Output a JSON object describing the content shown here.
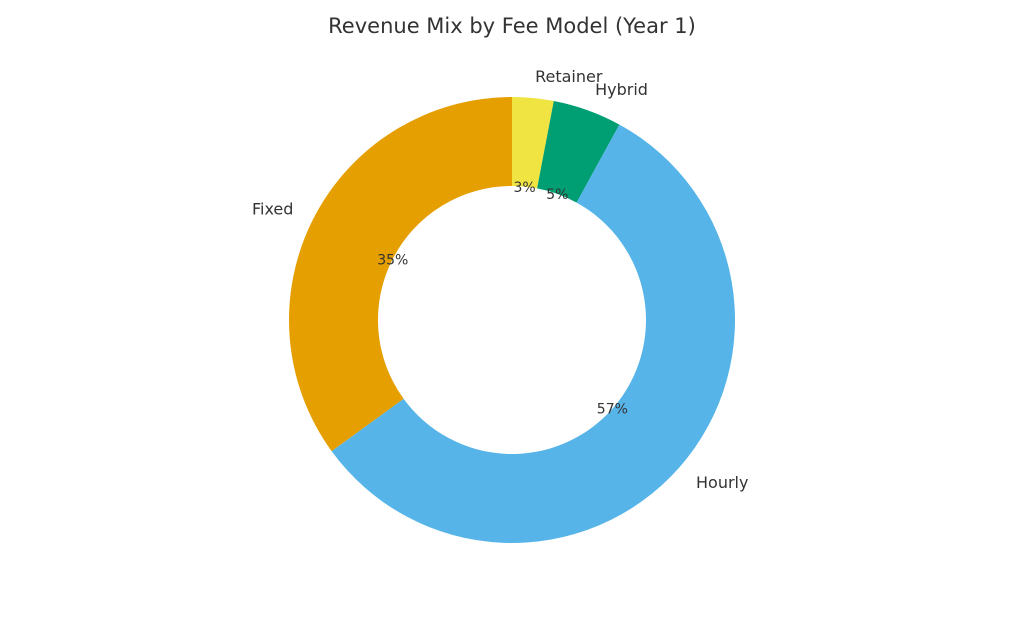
{
  "chart_data": {
    "type": "pie",
    "variant": "donut",
    "title": "Revenue Mix by Fee Model (Year 1)",
    "categories": [
      "Retainer",
      "Hybrid",
      "Hourly",
      "Fixed"
    ],
    "values": [
      3,
      5,
      57,
      35
    ],
    "percent_labels": [
      "3%",
      "5%",
      "57%",
      "35%"
    ],
    "colors": [
      "#F0E442",
      "#009E73",
      "#56B4E9",
      "#E69F00"
    ],
    "start": "top",
    "direction": "clockwise",
    "legend": "none"
  }
}
